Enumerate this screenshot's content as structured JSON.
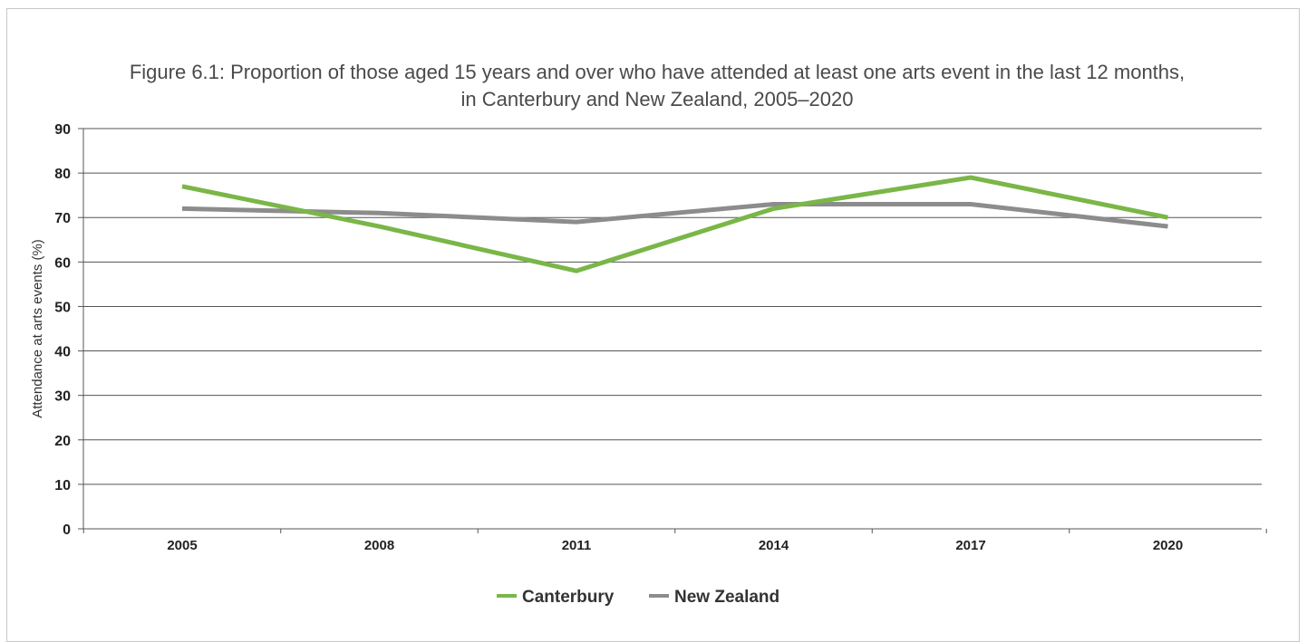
{
  "chart_data": {
    "type": "line",
    "title_line1": "Figure 6.1: Proportion of those aged 15 years and over who have attended at least one arts event in the last 12 months,",
    "title_line2": "in Canterbury and New Zealand, 2005–2020",
    "ylabel": "Attendance at arts events (%)",
    "xlabel": "",
    "x": [
      "2005",
      "2008",
      "2011",
      "2014",
      "2017",
      "2020"
    ],
    "ylim": [
      0,
      90
    ],
    "yticks": [
      "0",
      "10",
      "20",
      "30",
      "40",
      "50",
      "60",
      "70",
      "80",
      "90"
    ],
    "grid": true,
    "legend_position": "bottom",
    "series": [
      {
        "name": "Canterbury",
        "values": [
          77,
          68,
          58,
          72,
          79,
          70
        ],
        "color": "#7ab648"
      },
      {
        "name": "New Zealand",
        "values": [
          72,
          71,
          69,
          73,
          73,
          68
        ],
        "color": "#8c8c8c"
      }
    ]
  }
}
